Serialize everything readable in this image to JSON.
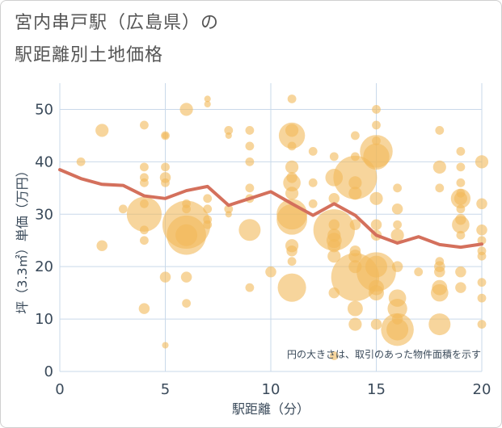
{
  "chart_data": {
    "type": "scatter",
    "title_line1": "宮内串戸駅（広島県）の",
    "title_line2": "駅距離別土地価格",
    "xlabel": "駅距離（分）",
    "ylabel": "坪（3.3㎡）単価（万円）",
    "note": "円の大きさは、取引のあった物件面積を示す",
    "xlim": [
      0,
      20
    ],
    "ylim": [
      0,
      55
    ],
    "x_ticks": [
      0,
      5,
      10,
      15,
      20
    ],
    "y_ticks": [
      0,
      10,
      20,
      30,
      40,
      50
    ],
    "colors": {
      "bubble": "#f2b95a",
      "line": "#d4705c",
      "grid": "#c9d9ea",
      "axis_text": "#3a4a5a"
    },
    "trend_line": {
      "x": [
        0,
        1,
        2,
        3,
        4,
        5,
        6,
        7,
        8,
        9,
        10,
        11,
        12,
        13,
        14,
        15,
        16,
        17,
        18,
        19,
        20
      ],
      "y": [
        38.5,
        36.8,
        35.7,
        35.5,
        33.5,
        33.0,
        34.5,
        35.3,
        31.7,
        33.0,
        34.3,
        32.0,
        29.8,
        32.0,
        29.8,
        26.0,
        24.5,
        25.7,
        24.2,
        23.7,
        24.3
      ]
    },
    "bubbles": [
      {
        "x": 1,
        "y": 40,
        "s": 4
      },
      {
        "x": 2,
        "y": 46,
        "s": 6
      },
      {
        "x": 2,
        "y": 24,
        "s": 5
      },
      {
        "x": 3,
        "y": 31,
        "s": 4
      },
      {
        "x": 4,
        "y": 47,
        "s": 4
      },
      {
        "x": 4,
        "y": 39,
        "s": 4
      },
      {
        "x": 4,
        "y": 37,
        "s": 4
      },
      {
        "x": 4,
        "y": 36,
        "s": 4
      },
      {
        "x": 4,
        "y": 32,
        "s": 4
      },
      {
        "x": 4,
        "y": 30,
        "s": 16
      },
      {
        "x": 4,
        "y": 27,
        "s": 4
      },
      {
        "x": 4,
        "y": 25,
        "s": 4
      },
      {
        "x": 4,
        "y": 12,
        "s": 5
      },
      {
        "x": 5,
        "y": 45,
        "s": 4
      },
      {
        "x": 5,
        "y": 45,
        "s": 3
      },
      {
        "x": 5,
        "y": 39,
        "s": 4
      },
      {
        "x": 5,
        "y": 37,
        "s": 5
      },
      {
        "x": 5,
        "y": 36,
        "s": 4
      },
      {
        "x": 5,
        "y": 18,
        "s": 5
      },
      {
        "x": 5,
        "y": 5,
        "s": 3
      },
      {
        "x": 6,
        "y": 50,
        "s": 6
      },
      {
        "x": 6,
        "y": 32,
        "s": 4
      },
      {
        "x": 6,
        "y": 31,
        "s": 4
      },
      {
        "x": 6,
        "y": 28,
        "s": 22
      },
      {
        "x": 6,
        "y": 26,
        "s": 18
      },
      {
        "x": 6,
        "y": 26,
        "s": 10
      },
      {
        "x": 6,
        "y": 18,
        "s": 5
      },
      {
        "x": 6,
        "y": 13,
        "s": 4
      },
      {
        "x": 7,
        "y": 52,
        "s": 3
      },
      {
        "x": 7,
        "y": 51,
        "s": 3
      },
      {
        "x": 7,
        "y": 33,
        "s": 4
      },
      {
        "x": 7,
        "y": 31,
        "s": 4
      },
      {
        "x": 7,
        "y": 29,
        "s": 4
      },
      {
        "x": 7,
        "y": 28,
        "s": 4
      },
      {
        "x": 8,
        "y": 46,
        "s": 4
      },
      {
        "x": 8,
        "y": 45,
        "s": 3
      },
      {
        "x": 8,
        "y": 31,
        "s": 4
      },
      {
        "x": 8,
        "y": 30,
        "s": 3
      },
      {
        "x": 9,
        "y": 46,
        "s": 4
      },
      {
        "x": 9,
        "y": 43,
        "s": 4
      },
      {
        "x": 9,
        "y": 40,
        "s": 4
      },
      {
        "x": 9,
        "y": 35,
        "s": 4
      },
      {
        "x": 9,
        "y": 33,
        "s": 4
      },
      {
        "x": 9,
        "y": 27,
        "s": 10
      },
      {
        "x": 9,
        "y": 16,
        "s": 4
      },
      {
        "x": 10,
        "y": 19,
        "s": 5
      },
      {
        "x": 11,
        "y": 52,
        "s": 4
      },
      {
        "x": 11,
        "y": 46,
        "s": 6
      },
      {
        "x": 11,
        "y": 45,
        "s": 12
      },
      {
        "x": 11,
        "y": 43,
        "s": 4
      },
      {
        "x": 11,
        "y": 39,
        "s": 6
      },
      {
        "x": 11,
        "y": 37,
        "s": 5
      },
      {
        "x": 11,
        "y": 36,
        "s": 8
      },
      {
        "x": 11,
        "y": 34,
        "s": 6
      },
      {
        "x": 11,
        "y": 30,
        "s": 14
      },
      {
        "x": 11,
        "y": 29,
        "s": 14
      },
      {
        "x": 11,
        "y": 24,
        "s": 6
      },
      {
        "x": 11,
        "y": 23,
        "s": 5
      },
      {
        "x": 11,
        "y": 21,
        "s": 4
      },
      {
        "x": 11,
        "y": 16,
        "s": 13
      },
      {
        "x": 12,
        "y": 42,
        "s": 4
      },
      {
        "x": 12,
        "y": 36,
        "s": 4
      },
      {
        "x": 12,
        "y": 32,
        "s": 4
      },
      {
        "x": 13,
        "y": 41,
        "s": 4
      },
      {
        "x": 13,
        "y": 37,
        "s": 8
      },
      {
        "x": 13,
        "y": 33,
        "s": 5
      },
      {
        "x": 13,
        "y": 28,
        "s": 5
      },
      {
        "x": 13,
        "y": 27,
        "s": 19
      },
      {
        "x": 13,
        "y": 26,
        "s": 6
      },
      {
        "x": 13,
        "y": 25,
        "s": 7
      },
      {
        "x": 13,
        "y": 24,
        "s": 6
      },
      {
        "x": 13,
        "y": 22,
        "s": 6
      },
      {
        "x": 13,
        "y": 15,
        "s": 5
      },
      {
        "x": 13,
        "y": 3,
        "s": 4
      },
      {
        "x": 14,
        "y": 45,
        "s": 4
      },
      {
        "x": 14,
        "y": 41,
        "s": 4
      },
      {
        "x": 14,
        "y": 37,
        "s": 20
      },
      {
        "x": 14,
        "y": 36,
        "s": 6
      },
      {
        "x": 14,
        "y": 34,
        "s": 6
      },
      {
        "x": 14,
        "y": 28,
        "s": 5
      },
      {
        "x": 14,
        "y": 23,
        "s": 5
      },
      {
        "x": 14,
        "y": 22,
        "s": 6
      },
      {
        "x": 14,
        "y": 20,
        "s": 6
      },
      {
        "x": 14,
        "y": 18,
        "s": 22
      },
      {
        "x": 14,
        "y": 12,
        "s": 7
      },
      {
        "x": 14,
        "y": 9,
        "s": 6
      },
      {
        "x": 15,
        "y": 50,
        "s": 4
      },
      {
        "x": 15,
        "y": 47,
        "s": 4
      },
      {
        "x": 15,
        "y": 44,
        "s": 4
      },
      {
        "x": 15,
        "y": 42,
        "s": 15
      },
      {
        "x": 15,
        "y": 41,
        "s": 12
      },
      {
        "x": 15,
        "y": 33,
        "s": 6
      },
      {
        "x": 15,
        "y": 28,
        "s": 5
      },
      {
        "x": 15,
        "y": 26,
        "s": 5
      },
      {
        "x": 15,
        "y": 20,
        "s": 10
      },
      {
        "x": 15,
        "y": 19,
        "s": 18
      },
      {
        "x": 15,
        "y": 16,
        "s": 7
      },
      {
        "x": 15,
        "y": 15,
        "s": 7
      },
      {
        "x": 15,
        "y": 9,
        "s": 5
      },
      {
        "x": 16,
        "y": 35,
        "s": 4
      },
      {
        "x": 16,
        "y": 31,
        "s": 5
      },
      {
        "x": 16,
        "y": 28,
        "s": 4
      },
      {
        "x": 16,
        "y": 26,
        "s": 6
      },
      {
        "x": 16,
        "y": 20,
        "s": 5
      },
      {
        "x": 16,
        "y": 14,
        "s": 8
      },
      {
        "x": 16,
        "y": 12,
        "s": 9
      },
      {
        "x": 16,
        "y": 10,
        "s": 5
      },
      {
        "x": 16,
        "y": 8,
        "s": 15
      },
      {
        "x": 16,
        "y": 8,
        "s": 10
      },
      {
        "x": 17,
        "y": 19,
        "s": 4
      },
      {
        "x": 18,
        "y": 46,
        "s": 4
      },
      {
        "x": 18,
        "y": 39,
        "s": 6
      },
      {
        "x": 18,
        "y": 35,
        "s": 4
      },
      {
        "x": 18,
        "y": 21,
        "s": 4
      },
      {
        "x": 18,
        "y": 20,
        "s": 5
      },
      {
        "x": 18,
        "y": 19,
        "s": 5
      },
      {
        "x": 18,
        "y": 16,
        "s": 7
      },
      {
        "x": 18,
        "y": 15,
        "s": 8
      },
      {
        "x": 18,
        "y": 9,
        "s": 10
      },
      {
        "x": 19,
        "y": 42,
        "s": 4
      },
      {
        "x": 19,
        "y": 39,
        "s": 4
      },
      {
        "x": 19,
        "y": 36,
        "s": 4
      },
      {
        "x": 19,
        "y": 34,
        "s": 4
      },
      {
        "x": 19,
        "y": 33,
        "s": 9
      },
      {
        "x": 19,
        "y": 33,
        "s": 6
      },
      {
        "x": 19,
        "y": 31,
        "s": 4
      },
      {
        "x": 19,
        "y": 29,
        "s": 5
      },
      {
        "x": 19,
        "y": 28,
        "s": 8
      },
      {
        "x": 19,
        "y": 26,
        "s": 4
      },
      {
        "x": 19,
        "y": 19,
        "s": 5
      },
      {
        "x": 19,
        "y": 16,
        "s": 5
      },
      {
        "x": 20,
        "y": 40,
        "s": 6
      },
      {
        "x": 20,
        "y": 32,
        "s": 5
      },
      {
        "x": 20,
        "y": 27,
        "s": 5
      },
      {
        "x": 20,
        "y": 25,
        "s": 4
      },
      {
        "x": 20,
        "y": 23,
        "s": 4
      },
      {
        "x": 20,
        "y": 22,
        "s": 4
      },
      {
        "x": 20,
        "y": 17,
        "s": 4
      },
      {
        "x": 20,
        "y": 14,
        "s": 4
      },
      {
        "x": 20,
        "y": 9,
        "s": 4
      }
    ]
  }
}
